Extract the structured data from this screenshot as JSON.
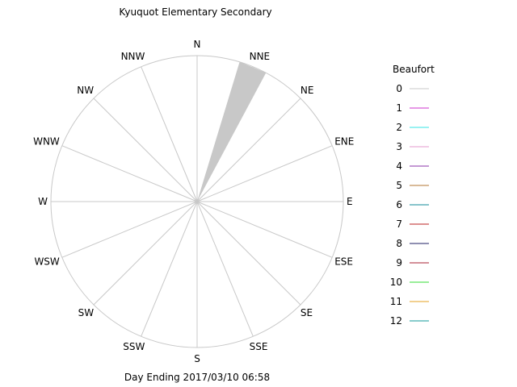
{
  "chart_data": {
    "type": "wind-rose",
    "title": "Kyuquot Elementary Secondary",
    "footer": "Day Ending 2017/03/10 06:58",
    "directions": [
      "N",
      "NNE",
      "NE",
      "ENE",
      "E",
      "ESE",
      "SE",
      "SSE",
      "S",
      "SSW",
      "SW",
      "WSW",
      "W",
      "WNW",
      "NW",
      "NNW"
    ],
    "legend": {
      "title": "Beaufort",
      "placement": "right",
      "entries": [
        {
          "label": "0",
          "color": "#c8c8c8"
        },
        {
          "label": "1",
          "color": "#cc33cc"
        },
        {
          "label": "2",
          "color": "#33e6e6"
        },
        {
          "label": "3",
          "color": "#e699cc"
        },
        {
          "label": "4",
          "color": "#8833aa"
        },
        {
          "label": "5",
          "color": "#b37733"
        },
        {
          "label": "6",
          "color": "#118899"
        },
        {
          "label": "7",
          "color": "#bb2222"
        },
        {
          "label": "8",
          "color": "#222266"
        },
        {
          "label": "9",
          "color": "#aa2233"
        },
        {
          "label": "10",
          "color": "#33dd33"
        },
        {
          "label": "11",
          "color": "#e6a020"
        },
        {
          "label": "12",
          "color": "#119999"
        }
      ]
    },
    "wedges": [
      {
        "direction": "NNE",
        "beaufort": "0",
        "fraction": 1.0
      }
    ],
    "grid": true,
    "grid_color": "#c8c8c8"
  }
}
